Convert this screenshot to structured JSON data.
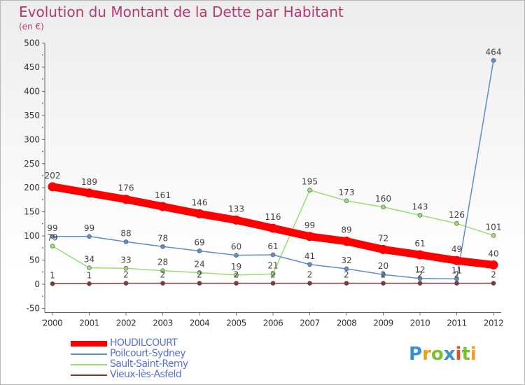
{
  "chart_data": {
    "type": "line",
    "title": "Evolution du Montant de la Dette par Habitant",
    "unit_label": "(en €)",
    "x": [
      "2000",
      "2001",
      "2002",
      "2003",
      "2004",
      "2005",
      "2006",
      "2007",
      "2008",
      "2009",
      "2010",
      "2011",
      "2012"
    ],
    "y_ticks": [
      "500",
      "450",
      "400",
      "350",
      "300",
      "250",
      "200",
      "150",
      "100",
      "50",
      "0",
      "-50"
    ],
    "ylim": [
      -50,
      500
    ],
    "grid": false,
    "legend_position": "bottom-left",
    "series": [
      {
        "name": "HOUDILCOURT",
        "color": "#ff0000",
        "values": [
          202,
          189,
          176,
          161,
          146,
          133,
          116,
          99,
          89,
          72,
          61,
          49,
          40
        ],
        "labels": [
          "202",
          "189",
          "176",
          "161",
          "146",
          "133",
          "116",
          "99",
          "89",
          "72",
          "61",
          "49",
          "40"
        ]
      },
      {
        "name": "Poilcourt-Sydney",
        "color": "#5b8fc7",
        "values": [
          99,
          99,
          88,
          78,
          69,
          60,
          61,
          41,
          32,
          20,
          12,
          11,
          464
        ],
        "labels": [
          "99",
          "99",
          "88",
          "78",
          "69",
          "60",
          "61",
          "41",
          "32",
          "20",
          "12",
          "11",
          "464"
        ]
      },
      {
        "name": "Sault-Saint-Remy",
        "color": "#99dd77",
        "values": [
          79,
          34,
          33,
          28,
          24,
          19,
          21,
          195,
          173,
          160,
          143,
          126,
          101
        ],
        "labels": [
          "79",
          "34",
          "33",
          "28",
          "24",
          "19",
          "21",
          "195",
          "173",
          "160",
          "143",
          "126",
          "101"
        ]
      },
      {
        "name": "Vieux-lès-Asfeld",
        "color": "#883333",
        "values": [
          1,
          1,
          2,
          2,
          2,
          2,
          2,
          2,
          2,
          2,
          2,
          2,
          2
        ],
        "labels": [
          "1",
          "1",
          "2",
          "2",
          "2",
          "2",
          "2",
          "2",
          "2",
          "2",
          "2",
          "2",
          "2"
        ]
      }
    ]
  },
  "logo": {
    "letters": [
      "P",
      "r",
      "o",
      "x",
      "i",
      "t",
      "i"
    ],
    "colors": [
      "#3a8fd0",
      "#f0a020",
      "#7cc030",
      "#3a8fd0",
      "#e05020",
      "#7cc030",
      "#f0a020"
    ]
  }
}
